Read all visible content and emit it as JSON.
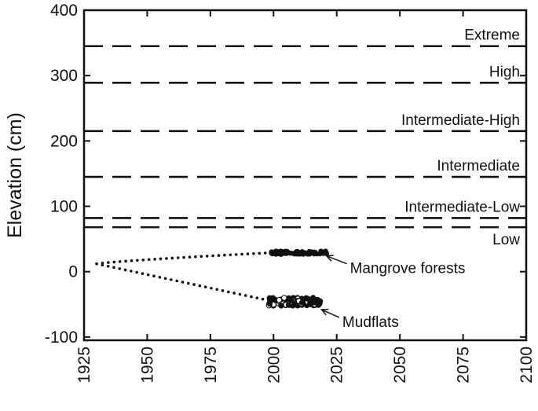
{
  "chart_data": {
    "type": "scatter",
    "title": "",
    "xlabel": "",
    "ylabel": "Elevation (cm)",
    "xlim": [
      1925,
      2100
    ],
    "ylim": [
      -105,
      400
    ],
    "xticks": [
      1925,
      1950,
      1975,
      2000,
      2025,
      2050,
      2075,
      2100
    ],
    "yticks": [
      -100,
      0,
      100,
      200,
      300,
      400
    ],
    "ytick_labels": [
      "-100",
      "0",
      "100",
      "200",
      "300",
      "400"
    ],
    "grid": false,
    "scenarios": [
      {
        "label": "Extreme",
        "value": 345
      },
      {
        "label": "High",
        "value": 289
      },
      {
        "label": "Intermediate-High",
        "value": 215
      },
      {
        "label": "Intermediate",
        "value": 145
      },
      {
        "label": "Intermediate-Low",
        "value": 82
      },
      {
        "label": "Low",
        "value": 68
      }
    ],
    "series": [
      {
        "label": "Mangrove forests",
        "trend": {
          "x_start": 1930,
          "y_start": 12,
          "x_end": 1999,
          "y_end": 29
        },
        "observed": {
          "x_start": 1999,
          "x_end": 2022,
          "y_center": 29,
          "spread": 2.5
        }
      },
      {
        "label": "Mudflats",
        "trend": {
          "x_start": 1930,
          "y_start": 12,
          "x_end": 1998,
          "y_end": -44
        },
        "observed": {
          "x_start": 1998,
          "x_end": 2019,
          "y_center": -46,
          "spread": 6
        }
      }
    ],
    "annotation_arrows": [
      {
        "series": 0,
        "from": [
          2029,
          12
        ],
        "to": [
          2021,
          24
        ]
      },
      {
        "series": 1,
        "from": [
          2026,
          -70
        ],
        "to": [
          2019,
          -58
        ]
      }
    ]
  }
}
